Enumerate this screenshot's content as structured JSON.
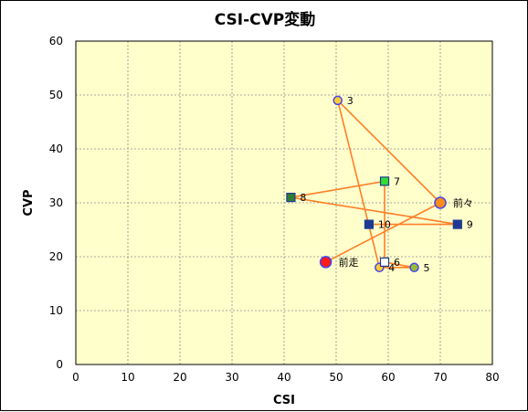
{
  "chart_data": {
    "type": "scatter",
    "title": "CSI-CVP変動",
    "xlabel": "CSI",
    "ylabel": "CVP",
    "xlim": [
      0,
      80
    ],
    "ylim": [
      0,
      60
    ],
    "x_ticks": [
      0,
      10,
      20,
      30,
      40,
      50,
      60,
      70,
      80
    ],
    "y_ticks": [
      0,
      10,
      20,
      30,
      40,
      50,
      60
    ],
    "grid": true,
    "legend": "none",
    "colors": {
      "plot_bg": "#ffffcc",
      "grid": "#8c8c8c",
      "line": "#ff7f27",
      "orange_fill": "#ff8c1a",
      "yellow_fill": "#ffcc33",
      "olive_fill": "#99bb33",
      "red_fill": "#ff1a1a",
      "marker_border": "#4444ee",
      "navy_square": "#1f3a93",
      "green_square": "#2f7d32",
      "lime_square": "#33dd33",
      "white_square": "#ffffff"
    },
    "points": [
      {
        "label": "前々",
        "x": 70,
        "y": 30,
        "marker": "circle",
        "fill": "#ff8c1a",
        "size": "large"
      },
      {
        "label": "前走",
        "x": 48,
        "y": 19,
        "marker": "circle",
        "fill": "#ff1a1a",
        "size": "large"
      },
      {
        "label": "3",
        "x": 50.3,
        "y": 49,
        "marker": "circle",
        "fill": "#ffcc33",
        "size": "small"
      },
      {
        "label": "4",
        "x": 58.3,
        "y": 18,
        "marker": "circle",
        "fill": "#ffcc33",
        "size": "small"
      },
      {
        "label": "5",
        "x": 65,
        "y": 18,
        "marker": "circle",
        "fill": "#99bb33",
        "size": "small"
      },
      {
        "label": "6",
        "x": 59.3,
        "y": 19,
        "marker": "square",
        "fill": "#ffffff",
        "size": "small"
      },
      {
        "label": "7",
        "x": 59.3,
        "y": 34,
        "marker": "square",
        "fill": "#33dd33",
        "size": "small"
      },
      {
        "label": "8",
        "x": 41.3,
        "y": 31,
        "marker": "square",
        "fill": "#2f7d32",
        "size": "small"
      },
      {
        "label": "9",
        "x": 73.3,
        "y": 26,
        "marker": "square",
        "fill": "#1f3a93",
        "size": "small"
      },
      {
        "label": "10",
        "x": 56.3,
        "y": 26,
        "marker": "square",
        "fill": "#1f3a93",
        "size": "small"
      }
    ],
    "path_order": [
      "前走",
      "前々",
      "3",
      "4",
      "5",
      "6",
      "7",
      "8",
      "9",
      "10"
    ]
  }
}
